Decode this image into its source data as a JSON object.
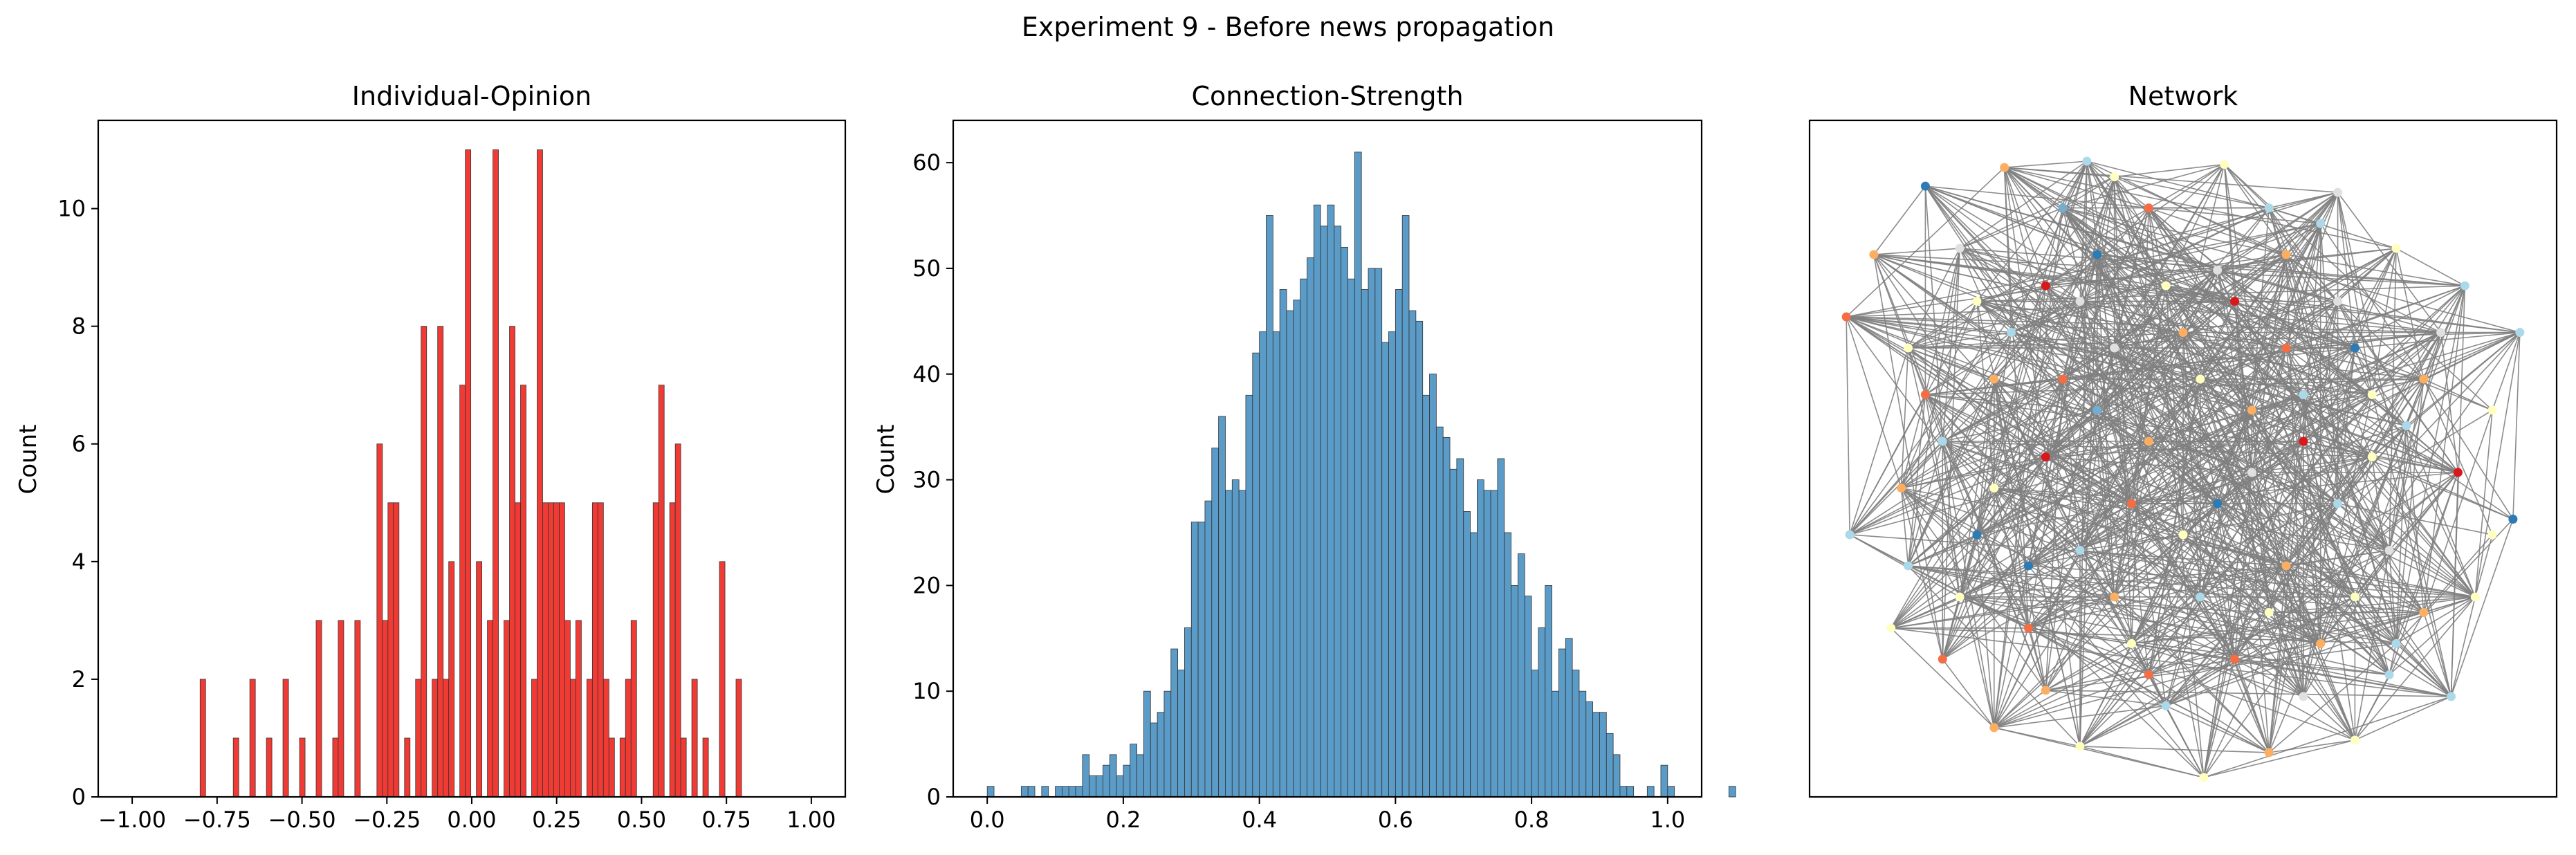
{
  "figure": {
    "suptitle": "Experiment 9 - Before news propagation"
  },
  "colors": {
    "opinion_bar": "#f03b35",
    "strength_bar": "#5b9bc7",
    "edge": "#808080",
    "node_palette": [
      "#d7191c",
      "#fdae61",
      "#ffffbf",
      "#abd9e9",
      "#2c7bb6",
      "#e0e0e0",
      "#f46d43",
      "#74add1"
    ]
  },
  "chart_data": [
    {
      "type": "bar",
      "title": "Individual-Opinion",
      "xlabel": "",
      "ylabel": "Count",
      "xlim": [
        -1.1,
        1.1
      ],
      "ylim": [
        0,
        11.5
      ],
      "xticks": [
        -1.0,
        -0.75,
        -0.5,
        -0.25,
        0.0,
        0.25,
        0.5,
        0.75,
        1.0
      ],
      "xtick_labels": [
        "−1.00",
        "−0.75",
        "−0.50",
        "−0.25",
        "0.00",
        "0.25",
        "0.50",
        "0.75",
        "1.00"
      ],
      "yticks": [
        0,
        2,
        4,
        6,
        8,
        10
      ],
      "bin_start": -0.8,
      "bin_width": 0.01627,
      "values": [
        2,
        0,
        0,
        0,
        0,
        0,
        1,
        0,
        0,
        2,
        0,
        0,
        1,
        0,
        0,
        2,
        0,
        0,
        1,
        0,
        0,
        3,
        0,
        0,
        1,
        3,
        0,
        0,
        3,
        0,
        0,
        0,
        6,
        3,
        5,
        5,
        0,
        1,
        0,
        2,
        8,
        0,
        2,
        8,
        2,
        4,
        0,
        7,
        11,
        0,
        4,
        0,
        3,
        11,
        0,
        3,
        8,
        5,
        7,
        0,
        2,
        11,
        5,
        5,
        5,
        5,
        3,
        2,
        3,
        0,
        2,
        5,
        5,
        2,
        1,
        0,
        1,
        2,
        3,
        0,
        0,
        0,
        5,
        7,
        0,
        5,
        6,
        1,
        0,
        2,
        0,
        1,
        0,
        0,
        4,
        0,
        0,
        2,
        0
      ]
    },
    {
      "type": "bar",
      "title": "Connection-Strength",
      "xlabel": "",
      "ylabel": "Count",
      "xlim": [
        -0.05,
        1.05
      ],
      "ylim": [
        0,
        64
      ],
      "xticks": [
        0.0,
        0.2,
        0.4,
        0.6,
        0.8,
        1.0
      ],
      "xtick_labels": [
        "0.0",
        "0.2",
        "0.4",
        "0.6",
        "0.8",
        "1.0"
      ],
      "yticks": [
        0,
        10,
        20,
        30,
        40,
        50,
        60
      ],
      "bin_start": 0.0,
      "bin_width": 0.01,
      "values": [
        1,
        0,
        0,
        0,
        0,
        1,
        1,
        0,
        1,
        0,
        1,
        1,
        1,
        1,
        4,
        2,
        2,
        3,
        4,
        2,
        3,
        5,
        4,
        10,
        7,
        8,
        10,
        14,
        12,
        16,
        26,
        26,
        28,
        33,
        36,
        29,
        30,
        29,
        38,
        42,
        44,
        55,
        44,
        48,
        46,
        47,
        49,
        51,
        56,
        54,
        56,
        54,
        52,
        49,
        61,
        48,
        50,
        50,
        43,
        44,
        48,
        55,
        46,
        45,
        38,
        40,
        35,
        34,
        31,
        32,
        27,
        25,
        30,
        29,
        29,
        32,
        25,
        20,
        23,
        19,
        12,
        16,
        20,
        10,
        14,
        15,
        12,
        10,
        9,
        8,
        8,
        6,
        4,
        1,
        1,
        0,
        0,
        1,
        0,
        3,
        1,
        0,
        0,
        0,
        0,
        0,
        0,
        0,
        0,
        1
      ]
    },
    {
      "type": "network",
      "title": "Network",
      "nodes": [
        {
          "x": -0.52,
          "y": 0.98,
          "c": 1
        },
        {
          "x": 0.12,
          "y": 0.99,
          "c": 2
        },
        {
          "x": -0.28,
          "y": 1.0,
          "c": 3
        },
        {
          "x": 0.45,
          "y": 0.9,
          "c": 5
        },
        {
          "x": -0.75,
          "y": 0.92,
          "c": 4
        },
        {
          "x": -0.9,
          "y": 0.7,
          "c": 1
        },
        {
          "x": -0.98,
          "y": 0.5,
          "c": 6
        },
        {
          "x": 0.98,
          "y": 0.45,
          "c": 3
        },
        {
          "x": 0.9,
          "y": 0.2,
          "c": 2
        },
        {
          "x": -0.97,
          "y": -0.2,
          "c": 3
        },
        {
          "x": 0.96,
          "y": -0.15,
          "c": 4
        },
        {
          "x": -0.85,
          "y": -0.5,
          "c": 2
        },
        {
          "x": 0.78,
          "y": -0.72,
          "c": 3
        },
        {
          "x": -0.55,
          "y": -0.82,
          "c": 1
        },
        {
          "x": 0.25,
          "y": -0.9,
          "c": 1
        },
        {
          "x": -0.3,
          "y": -0.88,
          "c": 2
        },
        {
          "x": 0.06,
          "y": -0.98,
          "c": 2
        },
        {
          "x": 0.5,
          "y": -0.86,
          "c": 2
        },
        {
          "x": -0.7,
          "y": -0.6,
          "c": 6
        },
        {
          "x": 0.62,
          "y": -0.55,
          "c": 3
        },
        {
          "x": -0.4,
          "y": 0.6,
          "c": 0
        },
        {
          "x": 0.15,
          "y": 0.55,
          "c": 0
        },
        {
          "x": -0.25,
          "y": 0.7,
          "c": 4
        },
        {
          "x": 0.3,
          "y": 0.7,
          "c": 1
        },
        {
          "x": 0.5,
          "y": 0.4,
          "c": 4
        },
        {
          "x": -0.55,
          "y": 0.3,
          "c": 1
        },
        {
          "x": -0.2,
          "y": 0.4,
          "c": 5
        },
        {
          "x": 0.05,
          "y": 0.3,
          "c": 2
        },
        {
          "x": 0.35,
          "y": 0.25,
          "c": 3
        },
        {
          "x": 0.7,
          "y": 0.3,
          "c": 1
        },
        {
          "x": -0.7,
          "y": 0.1,
          "c": 3
        },
        {
          "x": -0.4,
          "y": 0.05,
          "c": 0
        },
        {
          "x": -0.1,
          "y": 0.1,
          "c": 1
        },
        {
          "x": 0.2,
          "y": 0.0,
          "c": 5
        },
        {
          "x": 0.55,
          "y": 0.05,
          "c": 2
        },
        {
          "x": 0.8,
          "y": 0.0,
          "c": 0
        },
        {
          "x": -0.6,
          "y": -0.2,
          "c": 4
        },
        {
          "x": -0.3,
          "y": -0.25,
          "c": 3
        },
        {
          "x": 0.0,
          "y": -0.2,
          "c": 2
        },
        {
          "x": 0.3,
          "y": -0.3,
          "c": 1
        },
        {
          "x": 0.6,
          "y": -0.25,
          "c": 5
        },
        {
          "x": -0.45,
          "y": -0.5,
          "c": 6
        },
        {
          "x": -0.15,
          "y": -0.55,
          "c": 2
        },
        {
          "x": 0.15,
          "y": -0.6,
          "c": 6
        },
        {
          "x": 0.4,
          "y": -0.55,
          "c": 1
        },
        {
          "x": -0.8,
          "y": 0.4,
          "c": 2
        },
        {
          "x": 0.82,
          "y": 0.6,
          "c": 3
        },
        {
          "x": -0.1,
          "y": 0.85,
          "c": 6
        },
        {
          "x": 0.62,
          "y": 0.72,
          "c": 2
        },
        {
          "x": -0.65,
          "y": 0.72,
          "c": 5
        },
        {
          "x": -0.35,
          "y": 0.85,
          "c": 7
        },
        {
          "x": 0.25,
          "y": 0.85,
          "c": 3
        },
        {
          "x": -0.82,
          "y": -0.05,
          "c": 1
        },
        {
          "x": 0.85,
          "y": -0.4,
          "c": 2
        },
        {
          "x": -0.5,
          "y": 0.45,
          "c": 3
        },
        {
          "x": 0.1,
          "y": 0.65,
          "c": 5
        },
        {
          "x": 0.45,
          "y": 0.55,
          "c": 5
        },
        {
          "x": -0.25,
          "y": 0.2,
          "c": 7
        },
        {
          "x": 0.65,
          "y": 0.15,
          "c": 3
        },
        {
          "x": -0.55,
          "y": -0.05,
          "c": 2
        },
        {
          "x": 0.1,
          "y": -0.1,
          "c": 4
        },
        {
          "x": 0.45,
          "y": -0.1,
          "c": 3
        },
        {
          "x": -0.2,
          "y": -0.4,
          "c": 1
        },
        {
          "x": 0.25,
          "y": -0.45,
          "c": 2
        },
        {
          "x": -0.65,
          "y": -0.4,
          "c": 2
        },
        {
          "x": 0.7,
          "y": -0.45,
          "c": 1
        },
        {
          "x": -0.05,
          "y": -0.75,
          "c": 3
        },
        {
          "x": 0.35,
          "y": -0.72,
          "c": 5
        },
        {
          "x": -0.4,
          "y": -0.7,
          "c": 1
        },
        {
          "x": -0.35,
          "y": 0.3,
          "c": 6
        },
        {
          "x": 0.0,
          "y": 0.45,
          "c": 1
        },
        {
          "x": 0.3,
          "y": 0.4,
          "c": 6
        },
        {
          "x": 0.55,
          "y": 0.25,
          "c": 2
        },
        {
          "x": -0.75,
          "y": 0.25,
          "c": 6
        },
        {
          "x": -0.15,
          "y": -0.1,
          "c": 6
        },
        {
          "x": 0.35,
          "y": 0.1,
          "c": 0
        },
        {
          "x": -0.45,
          "y": -0.3,
          "c": 4
        },
        {
          "x": 0.05,
          "y": -0.4,
          "c": 3
        },
        {
          "x": 0.5,
          "y": -0.4,
          "c": 2
        },
        {
          "x": -0.05,
          "y": 0.6,
          "c": 2
        },
        {
          "x": 0.4,
          "y": 0.8,
          "c": 3
        },
        {
          "x": -0.6,
          "y": 0.55,
          "c": 2
        },
        {
          "x": 0.75,
          "y": 0.45,
          "c": 5
        },
        {
          "x": -0.3,
          "y": 0.55,
          "c": 5
        },
        {
          "x": 0.2,
          "y": 0.2,
          "c": 1
        },
        {
          "x": -0.1,
          "y": -0.65,
          "c": 6
        },
        {
          "x": 0.6,
          "y": -0.65,
          "c": 3
        },
        {
          "x": -0.8,
          "y": -0.3,
          "c": 3
        },
        {
          "x": 0.9,
          "y": -0.2,
          "c": 2
        },
        {
          "x": -0.2,
          "y": 0.95,
          "c": 2
        }
      ]
    }
  ]
}
